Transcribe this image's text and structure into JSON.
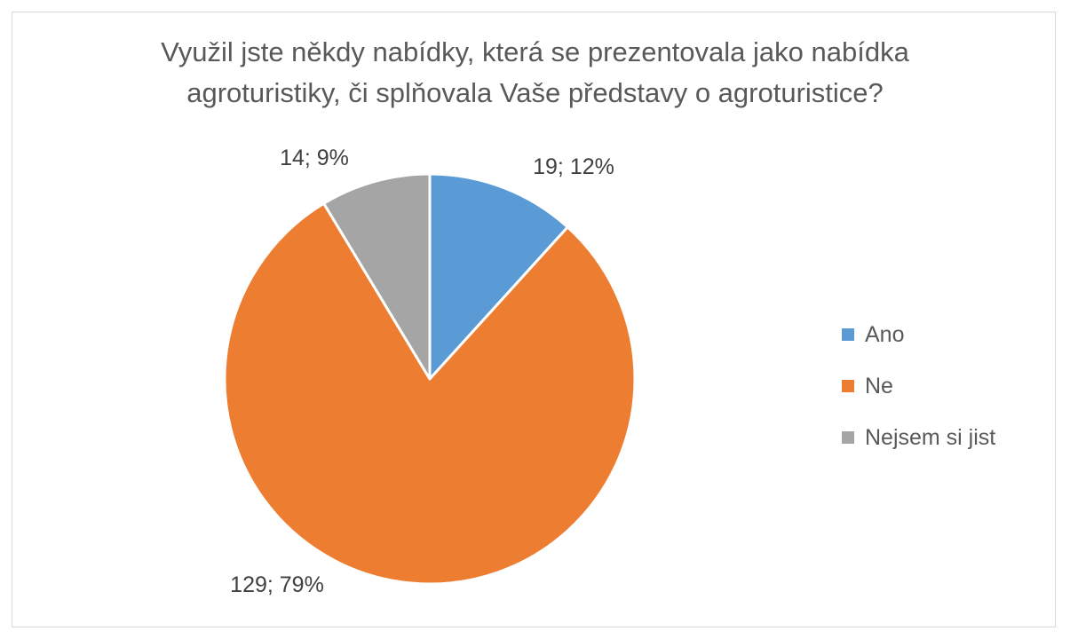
{
  "chart_data": {
    "type": "pie",
    "title": "Využil jste někdy nabídky, která se prezentovala jako nabídka agroturistiky, či splňovala Vaše představy o agroturistice?",
    "title_lines": [
      "Využil jste někdy nabídky, která se prezentovala jako nabídka",
      "agroturistiky, či splňovala Vaše představy o agroturistice?"
    ],
    "categories": [
      "Ano",
      "Ne",
      "Nejsem si jist"
    ],
    "values": [
      19,
      129,
      14
    ],
    "percentages": [
      12,
      79,
      9
    ],
    "data_labels": [
      "19; 12%",
      "129; 79%",
      "14; 9%"
    ],
    "colors": [
      "#5b9bd5",
      "#ed7d31",
      "#a5a5a5"
    ],
    "legend_position": "right",
    "start_angle": "12 o'clock",
    "direction": "clockwise"
  }
}
